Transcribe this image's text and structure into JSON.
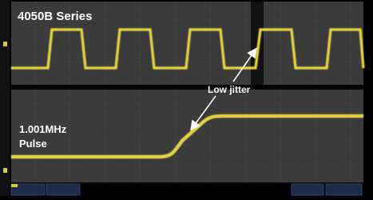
{
  "top_panel": {
    "title": "4050B Series"
  },
  "annotation": {
    "label": "Low jitter"
  },
  "bottom_panel": {
    "label_lines": [
      "1.001MHz",
      "Pulse"
    ]
  }
}
